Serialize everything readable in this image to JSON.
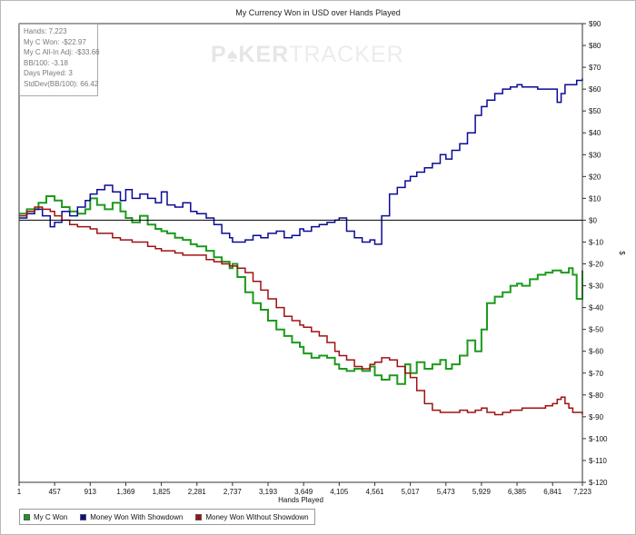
{
  "stats": [
    "Hands: 7,223",
    "My C Won: -$22.97",
    "My C All-In Adj: -$33.66",
    "BB/100: -3.18",
    "Days Played: 3",
    "StdDev(BB/100): 66.42"
  ],
  "watermark": {
    "left": "P",
    "spade": "♠",
    "middle": "KER",
    "right": "TRACKER"
  },
  "colors": {
    "green": "#1c9a1c",
    "blue": "#0a0a96",
    "red": "#a01010",
    "zero_line": "#000000",
    "axis": "#333333"
  },
  "chart_data": {
    "type": "line",
    "title": "My Currency Won in USD over Hands Played",
    "xlabel": "Hands Played",
    "ylabel": "$",
    "xlim": [
      1,
      7223
    ],
    "ylim": [
      -120,
      90
    ],
    "x_ticks": [
      1,
      457,
      913,
      1369,
      1825,
      2281,
      2737,
      3193,
      3649,
      4105,
      4561,
      5017,
      5473,
      5929,
      6385,
      6841,
      7223
    ],
    "x_tick_labels": [
      "1",
      "457",
      "913",
      "1,369",
      "1,825",
      "2,281",
      "2,737",
      "3,193",
      "3,649",
      "4,105",
      "4,561",
      "5,017",
      "5,473",
      "5,929",
      "6,385",
      "6,841",
      "7,223"
    ],
    "y_ticks": [
      90,
      80,
      70,
      60,
      50,
      40,
      30,
      20,
      10,
      0,
      -10,
      -20,
      -30,
      -40,
      -50,
      -60,
      -70,
      -80,
      -90,
      -100,
      -110,
      -120
    ],
    "y_tick_labels": [
      "$90",
      "$80",
      "$70",
      "$60",
      "$50",
      "$40",
      "$30",
      "$20",
      "$10",
      "$0",
      "$-10",
      "$-20",
      "$-30",
      "$-40",
      "$-50",
      "$-60",
      "$-70",
      "$-80",
      "$-90",
      "$-100",
      "$-110",
      "$-120"
    ],
    "grid": false,
    "legend_position": "bottom-left",
    "series": [
      {
        "name": "My C Won",
        "color": "#1c9a1c",
        "x": [
          1,
          100,
          250,
          350,
          457,
          550,
          650,
          750,
          850,
          913,
          1000,
          1100,
          1200,
          1300,
          1369,
          1450,
          1550,
          1650,
          1750,
          1825,
          1900,
          2000,
          2100,
          2200,
          2281,
          2400,
          2500,
          2600,
          2700,
          2737,
          2800,
          2900,
          3000,
          3100,
          3193,
          3300,
          3400,
          3500,
          3600,
          3649,
          3750,
          3850,
          3950,
          4050,
          4105,
          4200,
          4300,
          4400,
          4500,
          4561,
          4650,
          4750,
          4850,
          4950,
          5017,
          5100,
          5200,
          5300,
          5400,
          5473,
          5550,
          5650,
          5750,
          5850,
          5929,
          6000,
          6100,
          6200,
          6300,
          6385,
          6450,
          6550,
          6650,
          6750,
          6841,
          6950,
          7050,
          7100,
          7150,
          7223
        ],
        "y": [
          3,
          5,
          8,
          11,
          9,
          6,
          4,
          3,
          5,
          10,
          7,
          5,
          8,
          4,
          1,
          -1,
          2,
          -2,
          -4,
          -5,
          -6,
          -8,
          -9,
          -11,
          -12,
          -14,
          -17,
          -19,
          -22,
          -20,
          -26,
          -33,
          -38,
          -41,
          -46,
          -50,
          -53,
          -56,
          -58,
          -61,
          -63,
          -62,
          -63,
          -66,
          -68,
          -69,
          -68,
          -69,
          -67,
          -71,
          -73,
          -71,
          -75,
          -66,
          -70,
          -65,
          -68,
          -66,
          -64,
          -68,
          -66,
          -62,
          -55,
          -60,
          -50,
          -38,
          -35,
          -33,
          -30,
          -29,
          -30,
          -27,
          -25,
          -24,
          -23,
          -24,
          -22,
          -25,
          -36,
          -23
        ]
      },
      {
        "name": "Money Won With Showdown",
        "color": "#0a0a96",
        "x": [
          1,
          100,
          200,
          300,
          400,
          457,
          550,
          650,
          750,
          850,
          913,
          1000,
          1100,
          1200,
          1300,
          1369,
          1450,
          1550,
          1650,
          1750,
          1825,
          1900,
          2000,
          2100,
          2200,
          2281,
          2400,
          2500,
          2600,
          2700,
          2737,
          2800,
          2900,
          3000,
          3100,
          3193,
          3300,
          3400,
          3500,
          3600,
          3649,
          3750,
          3850,
          3950,
          4050,
          4105,
          4200,
          4300,
          4400,
          4500,
          4561,
          4650,
          4750,
          4850,
          4950,
          5017,
          5100,
          5200,
          5300,
          5400,
          5473,
          5550,
          5650,
          5750,
          5850,
          5929,
          6000,
          6100,
          6200,
          6300,
          6385,
          6450,
          6550,
          6650,
          6750,
          6841,
          6900,
          6950,
          7000,
          7100,
          7150,
          7223
        ],
        "y": [
          1,
          3,
          5,
          2,
          -3,
          -1,
          4,
          2,
          6,
          9,
          12,
          14,
          16,
          13,
          9,
          14,
          10,
          12,
          10,
          8,
          13,
          7,
          6,
          8,
          4,
          3,
          1,
          -2,
          -6,
          -8,
          -10,
          -10,
          -9,
          -7,
          -8,
          -6,
          -5,
          -8,
          -7,
          -4,
          -5,
          -3,
          -2,
          -1,
          0,
          1,
          -5,
          -8,
          -10,
          -9,
          -11,
          2,
          12,
          15,
          18,
          20,
          22,
          24,
          26,
          30,
          28,
          32,
          35,
          40,
          48,
          52,
          55,
          58,
          60,
          61,
          62,
          61,
          61,
          60,
          60,
          60,
          54,
          58,
          62,
          62,
          64,
          65
        ]
      },
      {
        "name": "Money Won Without Showdown",
        "color": "#a01010",
        "x": [
          1,
          100,
          200,
          300,
          400,
          457,
          550,
          650,
          750,
          850,
          913,
          1000,
          1100,
          1200,
          1300,
          1369,
          1450,
          1550,
          1650,
          1750,
          1825,
          1900,
          2000,
          2100,
          2200,
          2281,
          2400,
          2500,
          2600,
          2700,
          2737,
          2800,
          2900,
          3000,
          3100,
          3193,
          3300,
          3400,
          3500,
          3600,
          3649,
          3750,
          3850,
          3950,
          4050,
          4105,
          4200,
          4300,
          4400,
          4500,
          4561,
          4650,
          4750,
          4850,
          4950,
          5017,
          5100,
          5200,
          5300,
          5400,
          5473,
          5550,
          5650,
          5750,
          5850,
          5929,
          6000,
          6100,
          6200,
          6300,
          6385,
          6450,
          6550,
          6650,
          6750,
          6841,
          6900,
          6950,
          7000,
          7050,
          7100,
          7150,
          7223
        ],
        "y": [
          2,
          4,
          6,
          5,
          4,
          2,
          0,
          -2,
          -3,
          -3,
          -4,
          -6,
          -6,
          -8,
          -9,
          -9,
          -10,
          -10,
          -12,
          -13,
          -14,
          -14,
          -15,
          -16,
          -16,
          -16,
          -18,
          -19,
          -20,
          -21,
          -21,
          -22,
          -24,
          -28,
          -32,
          -36,
          -40,
          -44,
          -46,
          -48,
          -49,
          -51,
          -53,
          -56,
          -60,
          -62,
          -64,
          -67,
          -68,
          -66,
          -65,
          -63,
          -64,
          -67,
          -70,
          -72,
          -78,
          -84,
          -87,
          -88,
          -88,
          -88,
          -87,
          -88,
          -87,
          -86,
          -88,
          -89,
          -88,
          -87,
          -87,
          -86,
          -86,
          -86,
          -85,
          -84,
          -82,
          -81,
          -84,
          -86,
          -88,
          -88,
          -89
        ]
      }
    ]
  }
}
